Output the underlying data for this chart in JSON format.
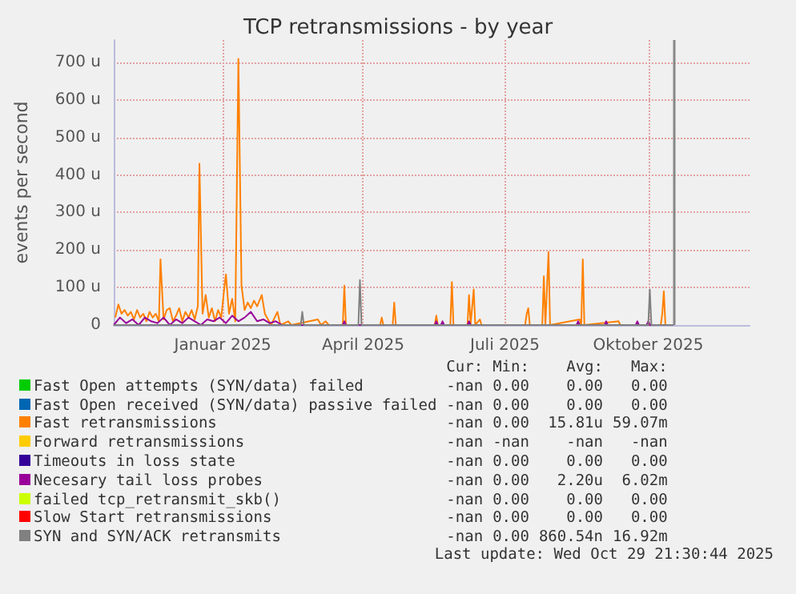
{
  "chart_data": {
    "type": "line",
    "title": "TCP retransmissions - by year",
    "ylabel": "events per second",
    "xlim": [
      "2024-10-23",
      "2025-12-05"
    ],
    "xticks": [
      {
        "value": "2025-01-01",
        "label": "Januar 2025"
      },
      {
        "value": "2025-04-01",
        "label": "April 2025"
      },
      {
        "value": "2025-07-01",
        "label": "Juli 2025"
      },
      {
        "value": "2025-10-01",
        "label": "Oktober 2025"
      }
    ],
    "ylim": [
      0,
      760
    ],
    "yticks": [
      {
        "value": 0,
        "label": "0"
      },
      {
        "value": 100,
        "label": "100 u"
      },
      {
        "value": 200,
        "label": "200 u"
      },
      {
        "value": 300,
        "label": "300 u"
      },
      {
        "value": 400,
        "label": "400 u"
      },
      {
        "value": 500,
        "label": "500 u"
      },
      {
        "value": 600,
        "label": "600 u"
      },
      {
        "value": 700,
        "label": "700 u"
      }
    ],
    "grid": true,
    "legend": "bottom",
    "marker": "none",
    "line_style": "solid",
    "ref_lines": [
      {
        "axis": "x",
        "value": "2025-10-17",
        "color": "#888888"
      }
    ],
    "series": [
      {
        "name": "Fast Open attempts (SYN/data) failed",
        "color": "#00cc00"
      },
      {
        "name": "Fast Open received (SYN/data) passive failed",
        "color": "#0066b3"
      },
      {
        "name": "Fast retransmissions",
        "color": "#ff8000",
        "x": [
          "2024-10-24",
          "2024-10-26",
          "2024-10-28",
          "2024-10-30",
          "2024-11-01",
          "2024-11-03",
          "2024-11-05",
          "2024-11-07",
          "2024-11-09",
          "2024-11-11",
          "2024-11-13",
          "2024-11-15",
          "2024-11-17",
          "2024-11-19",
          "2024-11-21",
          "2024-11-22",
          "2024-11-24",
          "2024-11-26",
          "2024-11-28",
          "2024-11-30",
          "2024-12-02",
          "2024-12-04",
          "2024-12-06",
          "2024-12-08",
          "2024-12-10",
          "2024-12-12",
          "2024-12-14",
          "2024-12-16",
          "2024-12-17",
          "2024-12-19",
          "2024-12-21",
          "2024-12-23",
          "2024-12-25",
          "2024-12-27",
          "2024-12-29",
          "2024-12-31",
          "2025-01-02",
          "2025-01-03",
          "2025-01-05",
          "2025-01-07",
          "2025-01-09",
          "2025-01-11",
          "2025-01-13",
          "2025-01-15",
          "2025-01-17",
          "2025-01-19",
          "2025-01-21",
          "2025-01-23",
          "2025-01-26",
          "2025-01-28",
          "2025-01-30",
          "2025-02-01",
          "2025-02-05",
          "2025-02-07",
          "2025-02-12",
          "2025-02-14",
          "2025-03-03",
          "2025-03-05",
          "2025-03-08",
          "2025-03-10",
          "2025-03-19",
          "2025-03-20",
          "2025-03-21",
          "2025-04-12",
          "2025-04-13",
          "2025-04-14",
          "2025-04-20",
          "2025-04-21",
          "2025-04-22",
          "2025-05-17",
          "2025-05-18",
          "2025-05-19",
          "2025-05-27",
          "2025-05-28",
          "2025-05-29",
          "2025-06-07",
          "2025-06-08",
          "2025-06-09",
          "2025-06-11",
          "2025-06-12",
          "2025-06-15",
          "2025-06-16",
          "2025-07-14",
          "2025-07-15",
          "2025-07-16",
          "2025-07-17",
          "2025-07-25",
          "2025-07-26",
          "2025-07-27",
          "2025-07-29",
          "2025-07-30",
          "2025-08-18",
          "2025-08-19",
          "2025-08-20",
          "2025-08-21",
          "2025-09-12",
          "2025-09-13",
          "2025-10-09",
          "2025-10-10",
          "2025-10-11",
          "2025-10-12",
          "2025-10-17"
        ],
        "values": [
          20,
          55,
          30,
          40,
          25,
          35,
          15,
          40,
          20,
          30,
          10,
          35,
          20,
          30,
          10,
          175,
          15,
          40,
          45,
          10,
          25,
          45,
          10,
          35,
          20,
          40,
          15,
          50,
          430,
          30,
          80,
          20,
          45,
          10,
          40,
          20,
          100,
          135,
          30,
          70,
          10,
          710,
          105,
          40,
          60,
          45,
          65,
          50,
          80,
          30,
          15,
          0,
          35,
          0,
          10,
          0,
          15,
          0,
          10,
          0,
          0,
          105,
          0,
          0,
          20,
          0,
          0,
          60,
          0,
          0,
          25,
          0,
          0,
          115,
          0,
          0,
          80,
          0,
          95,
          0,
          15,
          0,
          0,
          30,
          45,
          0,
          0,
          130,
          0,
          195,
          0,
          15,
          0,
          175,
          0,
          10,
          0,
          0,
          30,
          90,
          0,
          0
        ]
      },
      {
        "name": "Forward retransmissions",
        "color": "#ffcc00"
      },
      {
        "name": "Timeouts in loss state",
        "color": "#330099"
      },
      {
        "name": "Necesary tail loss probes",
        "color": "#990099",
        "x": [
          "2024-10-23",
          "2024-10-27",
          "2024-10-31",
          "2024-11-04",
          "2024-11-08",
          "2024-11-12",
          "2024-11-16",
          "2024-11-20",
          "2024-11-24",
          "2024-11-28",
          "2024-12-02",
          "2024-12-06",
          "2024-12-10",
          "2024-12-14",
          "2024-12-18",
          "2024-12-22",
          "2024-12-26",
          "2024-12-30",
          "2025-01-03",
          "2025-01-07",
          "2025-01-11",
          "2025-01-15",
          "2025-01-19",
          "2025-01-23",
          "2025-01-27",
          "2025-01-31",
          "2025-02-04",
          "2025-02-08",
          "2025-03-19",
          "2025-03-20",
          "2025-03-21",
          "2025-05-17",
          "2025-05-18",
          "2025-05-19",
          "2025-05-21",
          "2025-05-22",
          "2025-05-23",
          "2025-06-07",
          "2025-06-08",
          "2025-06-09",
          "2025-08-16",
          "2025-08-17",
          "2025-08-18",
          "2025-09-03",
          "2025-09-04",
          "2025-09-05",
          "2025-09-23",
          "2025-09-24",
          "2025-09-25",
          "2025-09-30",
          "2025-10-01",
          "2025-10-02",
          "2025-10-17"
        ],
        "values": [
          0,
          20,
          5,
          15,
          0,
          20,
          10,
          5,
          20,
          0,
          15,
          5,
          20,
          10,
          0,
          15,
          10,
          20,
          5,
          25,
          10,
          20,
          35,
          10,
          15,
          5,
          10,
          0,
          0,
          10,
          0,
          0,
          10,
          0,
          0,
          10,
          0,
          0,
          10,
          0,
          0,
          10,
          0,
          0,
          10,
          0,
          0,
          10,
          0,
          0,
          10,
          0,
          0
        ]
      },
      {
        "name": "failed tcp_retransmit_skb()",
        "color": "#ccff00"
      },
      {
        "name": "Slow Start retransmissions",
        "color": "#ff0000"
      },
      {
        "name": "SYN and SYN/ACK retransmits",
        "color": "#808080",
        "x": [
          "2024-10-23",
          "2025-02-20",
          "2025-02-21",
          "2025-02-22",
          "2025-03-29",
          "2025-03-30",
          "2025-03-31",
          "2025-10-01",
          "2025-10-02",
          "2025-10-03",
          "2025-10-17"
        ],
        "values": [
          0,
          0,
          35,
          0,
          0,
          120,
          0,
          0,
          95,
          0,
          0
        ]
      }
    ],
    "annotations": [
      "Cur:",
      "Min:",
      "Avg:",
      "Max:",
      "-nan",
      "0.00",
      "0.00",
      "0.00",
      "-nan",
      "0.00",
      "0.00",
      "0.00",
      "-nan",
      "0.00",
      "15.81u",
      "59.07m",
      "-nan",
      "-nan",
      "-nan",
      "-nan",
      "-nan",
      "0.00",
      "0.00",
      "0.00",
      "-nan",
      "0.00",
      "2.20u",
      "6.02m",
      "-nan",
      "0.00",
      "0.00",
      "0.00",
      "-nan",
      "0.00",
      "0.00",
      "0.00",
      "-nan",
      "0.00",
      "860.54n",
      "16.92m",
      "Last update: Wed Oct 29 21:30:44 2025"
    ]
  }
}
